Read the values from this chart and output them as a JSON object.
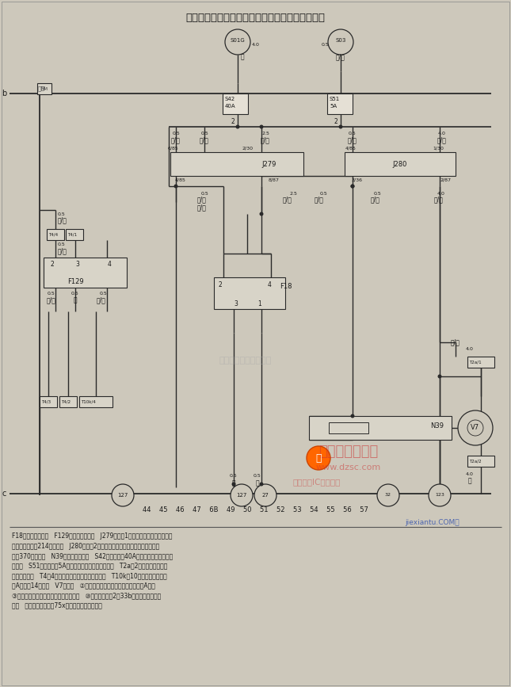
{
  "title": "空调压力开关、风扇热敏开关、风扇继电器和风扇",
  "bg_color": "#cdc8bb",
  "watermark1": "杭州将睿科技有限公司",
  "bottom_text_lines": [
    "F18－风扇热敏开关   F129－空调压力开关   J279－风扇1挡速度继电器（红色，在附",
    "加继电器架上，214继电器）   J280－风扇2挡速度继电器（棕色，在附加继电器架",
    "上，370继电器）   N39－风扇串联电阻   S42－保险丝（40A，黄色，在附加继电器",
    "架上）   S51－保险丝（5A，红色，在附加继电器架上）   T2a－2孔插头（在发动机",
    "室的左前侧）   T4－4孔插头（在发动机室的左前侧）   T10k－10孔插头（灰色，在",
    "左A柱处，14号处）   V7－风扇   ②－搭铁连接点（在继电器板边上，左A柱）",
    "③－搭铁连接点（在空调压缩机线束内）   ⑩－螺栓连接点2（33b火线，在继电器板",
    "上）   ⑪－螺栓连接点（75x火线，在继电器板上）"
  ],
  "col_numbers": "44    45    46    47    6B    49    50    51    52    53    54    55    56    57"
}
